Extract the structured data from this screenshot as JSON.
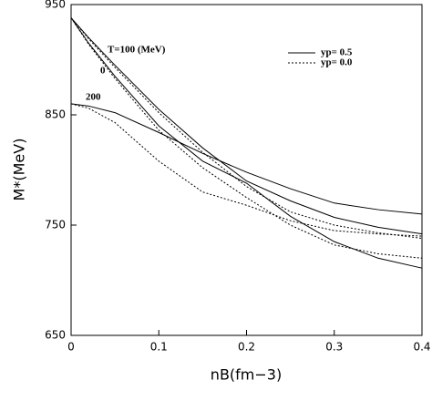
{
  "chart_data": {
    "type": "line",
    "x_label": "nB(fm−3)",
    "y_label": "M*(MeV)",
    "x": [
      0,
      0.02,
      0.05,
      0.1,
      0.15,
      0.2,
      0.25,
      0.3,
      0.35,
      0.4
    ],
    "series": [
      {
        "name": "yp= 0.5",
        "color": "#000000",
        "style": "solid",
        "values": [
          938,
          920,
          895,
          855,
          820,
          790,
          772,
          757,
          748,
          742
        ]
      },
      {
        "name": null,
        "color": "#000000",
        "style": "solid",
        "values": [
          938,
          915,
          885,
          840,
          808,
          788,
          758,
          735,
          720,
          711
        ]
      },
      {
        "name": null,
        "color": "#000000",
        "style": "solid",
        "values": [
          860,
          858,
          852,
          834,
          815,
          798,
          783,
          770,
          764,
          760
        ]
      },
      {
        "name": "yp= 0.0",
        "color": "#000000",
        "style": "dotted",
        "values": [
          938,
          919,
          893,
          852,
          816,
          785,
          762,
          750,
          743,
          738
        ]
      },
      {
        "name": null,
        "color": "#000000",
        "style": "dotted",
        "values": [
          938,
          914,
          883,
          836,
          802,
          775,
          750,
          732,
          724,
          720
        ]
      },
      {
        "name": null,
        "color": "#000000",
        "style": "dotted",
        "values": [
          860,
          856,
          843,
          808,
          780,
          768,
          754,
          745,
          742,
          740
        ]
      }
    ],
    "annotations": [
      "T=100 (MeV)",
      "0",
      "200"
    ],
    "xlim": [
      0,
      0.4
    ],
    "xticks": [
      0,
      0.1,
      0.2,
      0.3,
      0.4
    ],
    "ylim": [
      650,
      950
    ],
    "yticks": [
      650,
      750,
      850,
      950
    ],
    "legend": "top-right",
    "grid": false
  }
}
